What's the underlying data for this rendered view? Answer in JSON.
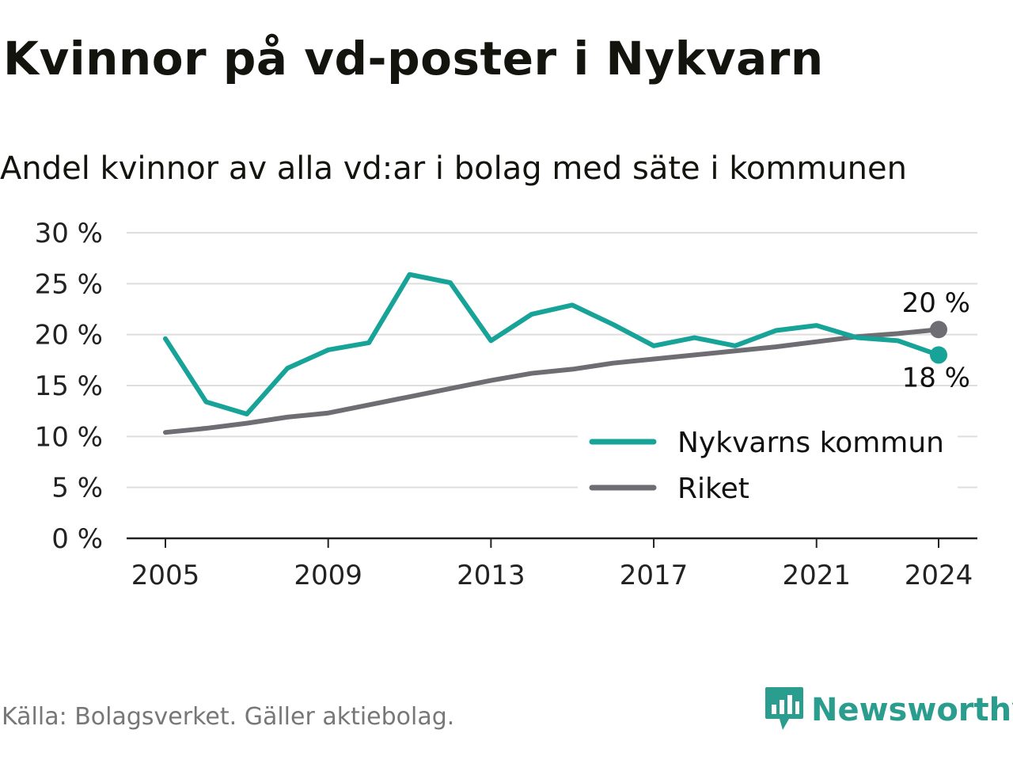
{
  "title": "Kvinnor på vd-poster i Nykvarn",
  "subtitle": "Andel kvinnor av alla vd:ar i bolag med säte i kommunen",
  "source": "Källa: Bolagsverket. Gäller aktiebolag.",
  "brand": {
    "name": "Newsworthy",
    "icon": "newsworthy-logo-icon",
    "color": "#2a9d8f"
  },
  "chart_data": {
    "type": "line",
    "title": "",
    "xlabel": "",
    "ylabel": "",
    "x": [
      2005,
      2006,
      2007,
      2008,
      2009,
      2010,
      2011,
      2012,
      2013,
      2014,
      2015,
      2016,
      2017,
      2018,
      2019,
      2020,
      2021,
      2022,
      2023,
      2024
    ],
    "xticks": [
      "2005",
      "2009",
      "2013",
      "2017",
      "2021",
      "2024"
    ],
    "yticks": [
      "0 %",
      "5 %",
      "10 %",
      "15 %",
      "20 %",
      "25 %",
      "30 %"
    ],
    "ylim": [
      0,
      30
    ],
    "grid": true,
    "legend_placement": "bottom-right",
    "series": [
      {
        "name": "Nykvarns kommun",
        "color": "#17a398",
        "values": [
          19.6,
          13.4,
          12.2,
          16.7,
          18.5,
          19.2,
          25.9,
          25.1,
          19.4,
          22.0,
          22.9,
          21.0,
          18.9,
          19.7,
          18.9,
          20.4,
          20.9,
          19.7,
          19.4,
          18.0
        ],
        "end_label": "18 %"
      },
      {
        "name": "Riket",
        "color": "#6e6d73",
        "values": [
          10.4,
          10.8,
          11.3,
          11.9,
          12.3,
          13.1,
          13.9,
          14.7,
          15.5,
          16.2,
          16.6,
          17.2,
          17.6,
          18.0,
          18.4,
          18.8,
          19.3,
          19.8,
          20.1,
          20.5
        ],
        "end_label": "20 %"
      }
    ]
  }
}
